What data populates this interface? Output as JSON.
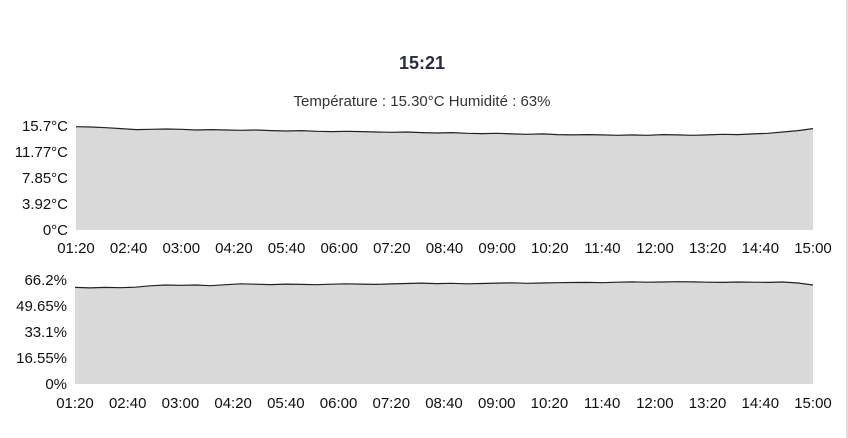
{
  "header": {
    "time": "15:21",
    "summary": "Température : 15.30°C Humidité : 63%"
  },
  "chart_data": [
    {
      "type": "area",
      "series": [
        {
          "name": "Température",
          "color": "#222222",
          "fill": "#d9d9d9"
        }
      ],
      "x_tick_labels": [
        "01:20",
        "02:40",
        "03:00",
        "04:20",
        "05:40",
        "06:00",
        "07:20",
        "08:40",
        "09:00",
        "10:20",
        "11:40",
        "12:00",
        "13:20",
        "14:40",
        "15:00"
      ],
      "y_tick_labels": [
        "15.7°C",
        "11.77°C",
        "7.85°C",
        "3.92°C",
        "0°C"
      ],
      "ylim": [
        0,
        15.7
      ],
      "unit": "°C",
      "values": [
        15.6,
        15.55,
        15.45,
        15.3,
        15.15,
        15.2,
        15.25,
        15.2,
        15.1,
        15.15,
        15.1,
        15.05,
        15.1,
        15.0,
        14.95,
        15.0,
        14.9,
        14.85,
        14.9,
        14.85,
        14.8,
        14.75,
        14.8,
        14.7,
        14.65,
        14.7,
        14.6,
        14.55,
        14.6,
        14.5,
        14.45,
        14.5,
        14.4,
        14.35,
        14.4,
        14.35,
        14.3,
        14.35,
        14.3,
        14.4,
        14.35,
        14.3,
        14.35,
        14.45,
        14.4,
        14.5,
        14.6,
        14.8,
        15.0,
        15.3
      ]
    },
    {
      "type": "area",
      "series": [
        {
          "name": "Humidité",
          "color": "#222222",
          "fill": "#d9d9d9"
        }
      ],
      "x_tick_labels": [
        "01:20",
        "02:40",
        "03:00",
        "04:20",
        "05:40",
        "06:00",
        "07:20",
        "08:40",
        "09:00",
        "10:20",
        "11:40",
        "12:00",
        "13:20",
        "14:40",
        "15:00"
      ],
      "y_tick_labels": [
        "66.2%",
        "49.65%",
        "33.1%",
        "16.55%",
        "0%"
      ],
      "ylim": [
        0,
        66.2
      ],
      "unit": "%",
      "values": [
        61.5,
        61.2,
        61.5,
        61.3,
        61.6,
        62.5,
        63.0,
        62.8,
        63.0,
        62.6,
        63.2,
        63.8,
        63.5,
        63.3,
        63.6,
        63.4,
        63.2,
        63.5,
        63.8,
        63.6,
        63.4,
        63.7,
        64.0,
        64.2,
        63.9,
        64.1,
        63.8,
        64.0,
        64.2,
        64.4,
        64.1,
        64.3,
        64.5,
        64.6,
        64.7,
        64.5,
        64.8,
        65.0,
        64.8,
        64.9,
        65.1,
        65.0,
        64.8,
        64.7,
        64.9,
        64.8,
        64.7,
        64.9,
        64.3,
        63.0
      ]
    }
  ]
}
